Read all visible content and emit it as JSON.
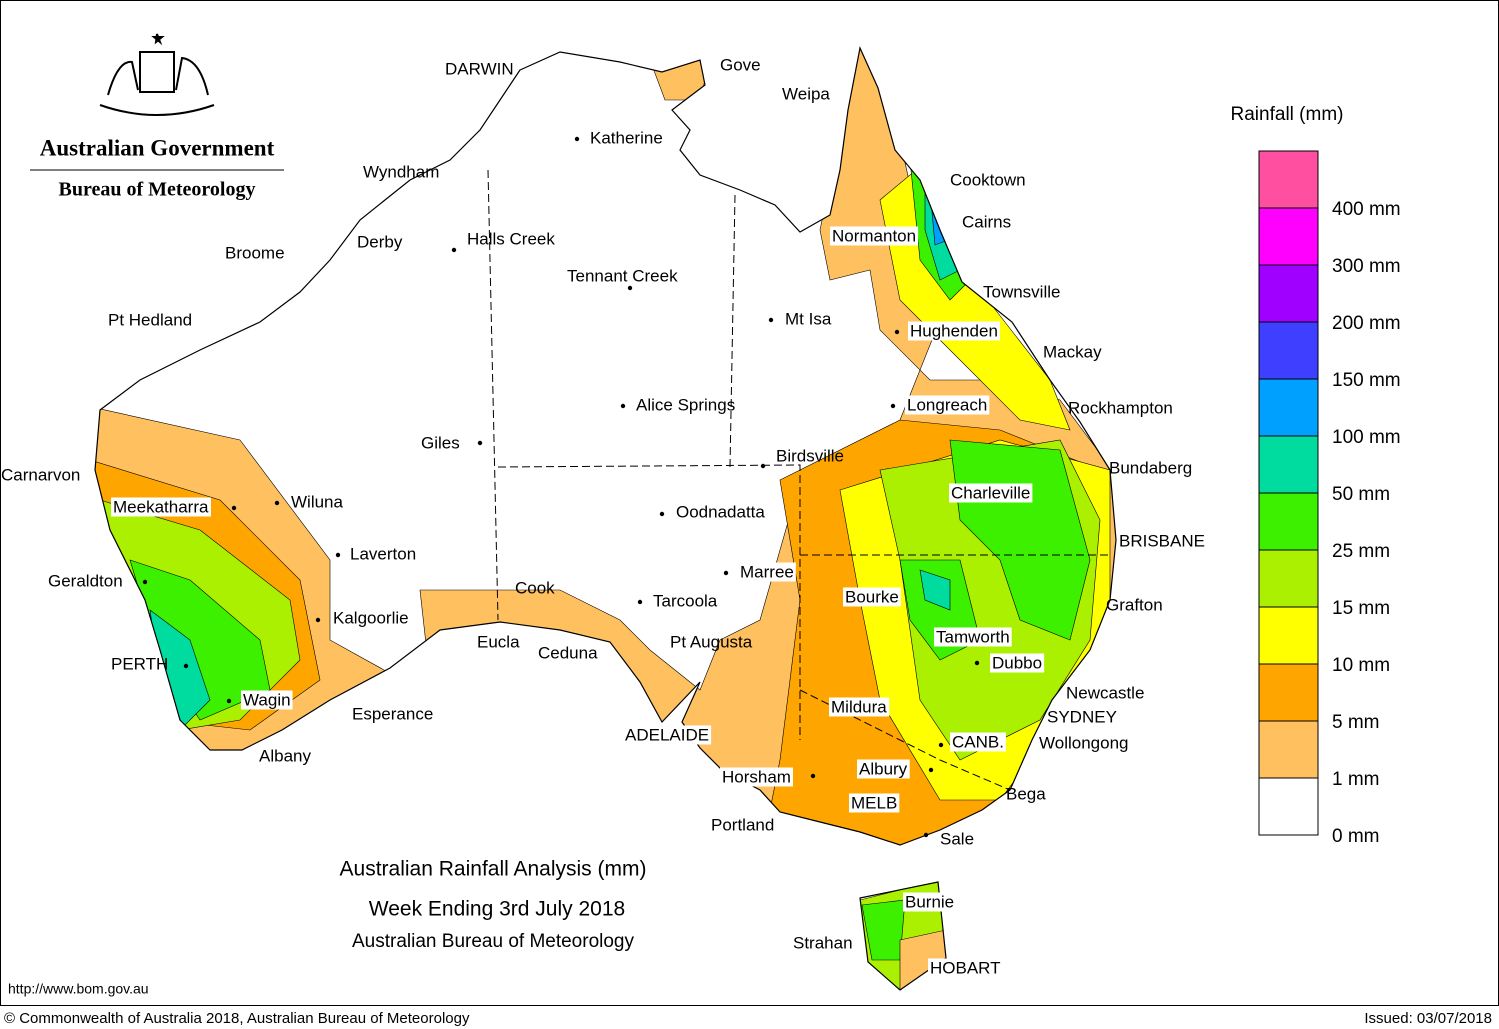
{
  "header": {
    "government": "Australian Government",
    "bureau": "Bureau of Meteorology"
  },
  "legend": {
    "title": "Rainfall (mm)",
    "colors": [
      "#ff4fa0",
      "#ff00ff",
      "#a000ff",
      "#3f3fff",
      "#00a0ff",
      "#00dca0",
      "#3cf000",
      "#aaf000",
      "#ffff00",
      "#ffa500",
      "#ffc060",
      "#ffffff"
    ],
    "labels": [
      "400 mm",
      "300 mm",
      "200 mm",
      "150 mm",
      "100 mm",
      "50 mm",
      "25 mm",
      "15 mm",
      "10 mm",
      "5 mm",
      "1 mm",
      "0 mm"
    ]
  },
  "places": [
    "DARWIN",
    "Gove",
    "Weipa",
    "Katherine",
    "Cooktown",
    "Wyndham",
    "Cairns",
    "Normanton",
    "Derby",
    "Halls Creek",
    "Broome",
    "Tennant Creek",
    "Townsville",
    "Mt Isa",
    "Pt Hedland",
    "Hughenden",
    "Mackay",
    "Alice Springs",
    "Longreach",
    "Rockhampton",
    "Giles",
    "Birdsville",
    "Bundaberg",
    "Carnarvon",
    "Charleville",
    "Meekatharra",
    "Wiluna",
    "Oodnadatta",
    "BRISBANE",
    "Laverton",
    "Marree",
    "Geraldton",
    "Cook",
    "Bourke",
    "Tarcoola",
    "Grafton",
    "Kalgoorlie",
    "Tamworth",
    "Pt Augusta",
    "Eucla",
    "Ceduna",
    "Dubbo",
    "PERTH",
    "Newcastle",
    "Wagin",
    "Mildura",
    "Esperance",
    "SYDNEY",
    "ADELAIDE",
    "CANB.",
    "Wollongong",
    "Albany",
    "Horsham",
    "Albury",
    "Bega",
    "MELB",
    "Portland",
    "Sale",
    "Burnie",
    "Strahan",
    "HOBART"
  ],
  "title": {
    "line1": "Australian Rainfall Analysis (mm)",
    "line2": "Week Ending 3rd July 2018",
    "line3": "Australian Bureau of Meteorology"
  },
  "footer": {
    "url": "http://www.bom.gov.au",
    "copyright": "© Commonwealth of Australia 2018, Australian Bureau of Meteorology",
    "issued": "Issued: 03/07/2018"
  }
}
